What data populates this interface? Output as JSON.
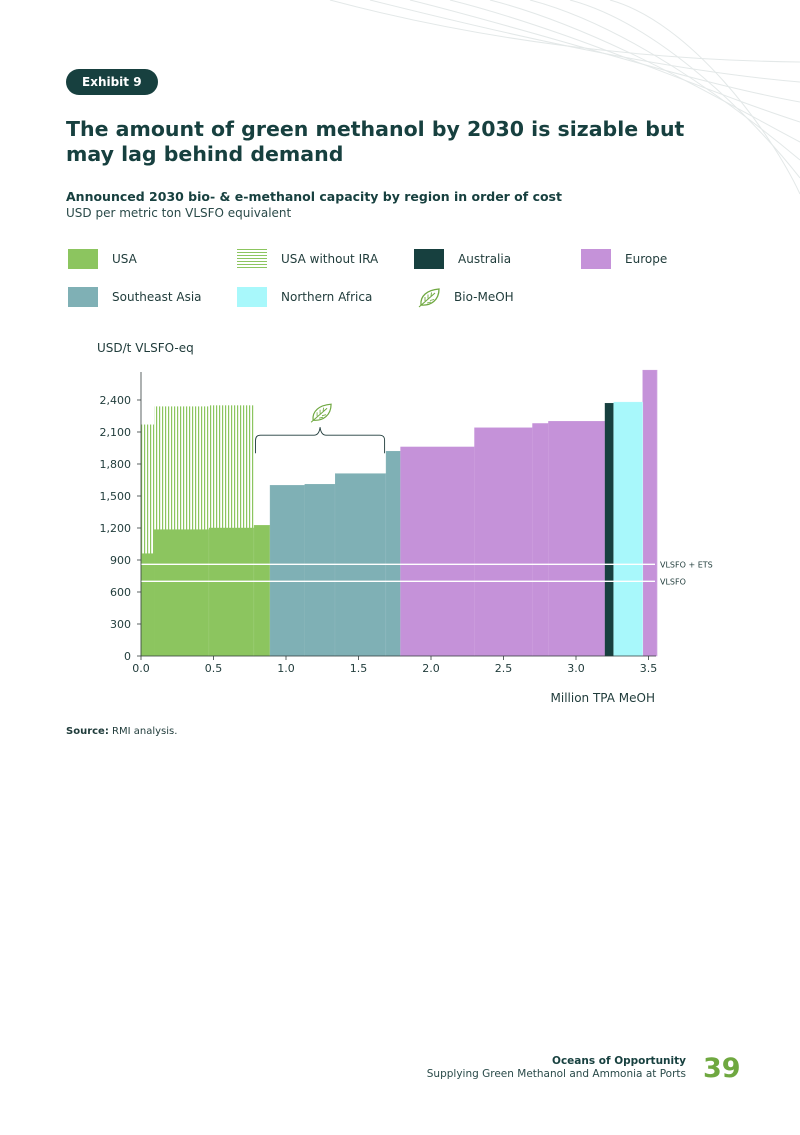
{
  "header": {
    "exhibit_label": "Exhibit 9",
    "title": "The amount of green methanol by 2030 is sizable but may lag behind demand",
    "subtitle": "Announced 2030 bio- & e-methanol capacity by region in order of cost",
    "units": "USD per metric ton VLSFO equivalent"
  },
  "legend": [
    {
      "label": "USA",
      "icon": "solid-swatch",
      "color": "#8cc55f"
    },
    {
      "label": "USA without IRA",
      "icon": "hatched-swatch",
      "color": "#8cc55f"
    },
    {
      "label": "Australia",
      "icon": "solid-swatch",
      "color": "#17403f"
    },
    {
      "label": "Europe",
      "icon": "solid-swatch",
      "color": "#c592d9"
    },
    {
      "label": "Southeast Asia",
      "icon": "solid-swatch",
      "color": "#7fb0b5"
    },
    {
      "label": "Northern Africa",
      "icon": "solid-swatch",
      "color": "#a8f8fb"
    },
    {
      "label": "Bio-MeOH",
      "icon": "leaf-icon",
      "color": "#6fa840"
    }
  ],
  "chart_data": {
    "type": "bar",
    "subtype": "variable-width cost curve",
    "ylabel": "USD/t VLSFO-eq",
    "xlabel": "Million TPA MeOH",
    "xlim": [
      0,
      3.5
    ],
    "ylim": [
      0,
      2700
    ],
    "xticks": [
      "0.0",
      "0.5",
      "1.0",
      "1.5",
      "2.0",
      "2.5",
      "3.0",
      "3.5"
    ],
    "yticks": [
      "0",
      "300",
      "600",
      "900",
      "1,200",
      "1,500",
      "1,800",
      "2,100",
      "2,400"
    ],
    "series": [
      {
        "name": "USA",
        "color": "#8cc55f",
        "bars": [
          {
            "x0": 0.0,
            "x1": 0.09,
            "value": 960
          },
          {
            "x0": 0.09,
            "x1": 0.47,
            "value": 1185
          },
          {
            "x0": 0.47,
            "x1": 0.78,
            "value": 1200
          },
          {
            "x0": 0.78,
            "x1": 0.89,
            "value": 1225
          }
        ]
      },
      {
        "name": "USA without IRA",
        "color": "#8cc55f",
        "bars": [
          {
            "x0": 0.0,
            "x1": 0.09,
            "value": 2170
          },
          {
            "x0": 0.09,
            "x1": 0.47,
            "value": 2340
          },
          {
            "x0": 0.47,
            "x1": 0.78,
            "value": 2350
          }
        ]
      },
      {
        "name": "Southeast Asia",
        "color": "#7fb0b5",
        "bars": [
          {
            "x0": 0.89,
            "x1": 1.13,
            "value": 1600
          },
          {
            "x0": 1.13,
            "x1": 1.34,
            "value": 1610
          },
          {
            "x0": 1.34,
            "x1": 1.69,
            "value": 1710
          },
          {
            "x0": 1.69,
            "x1": 1.79,
            "value": 1920
          }
        ]
      },
      {
        "name": "Europe",
        "color": "#c592d9",
        "bars": [
          {
            "x0": 1.79,
            "x1": 2.3,
            "value": 1960
          },
          {
            "x0": 2.3,
            "x1": 2.7,
            "value": 2140
          },
          {
            "x0": 2.7,
            "x1": 2.81,
            "value": 2180
          },
          {
            "x0": 2.81,
            "x1": 3.2,
            "value": 2200
          },
          {
            "x0": 3.46,
            "x1": 3.56,
            "value": 2680
          }
        ]
      },
      {
        "name": "Australia",
        "color": "#17403f",
        "bars": [
          {
            "x0": 3.2,
            "x1": 3.26,
            "value": 2370
          }
        ]
      },
      {
        "name": "Northern Africa",
        "color": "#a8f8fb",
        "bars": [
          {
            "x0": 3.26,
            "x1": 3.46,
            "value": 2380
          }
        ]
      }
    ],
    "reference_lines": [
      {
        "label": "VLSFO + ETS",
        "value": 860
      },
      {
        "label": "VLSFO",
        "value": 700
      }
    ],
    "annotations": [
      {
        "type": "brace-with-leaf",
        "label": "Bio-MeOH",
        "x0": 0.79,
        "x1": 1.68,
        "value": 2070
      }
    ]
  },
  "source": {
    "label": "Source:",
    "text": "RMI analysis."
  },
  "footer": {
    "doc_title": "Oceans of Opportunity",
    "doc_subtitle": "Supplying Green Methanol and Ammonia at Ports",
    "page_number": "39"
  }
}
